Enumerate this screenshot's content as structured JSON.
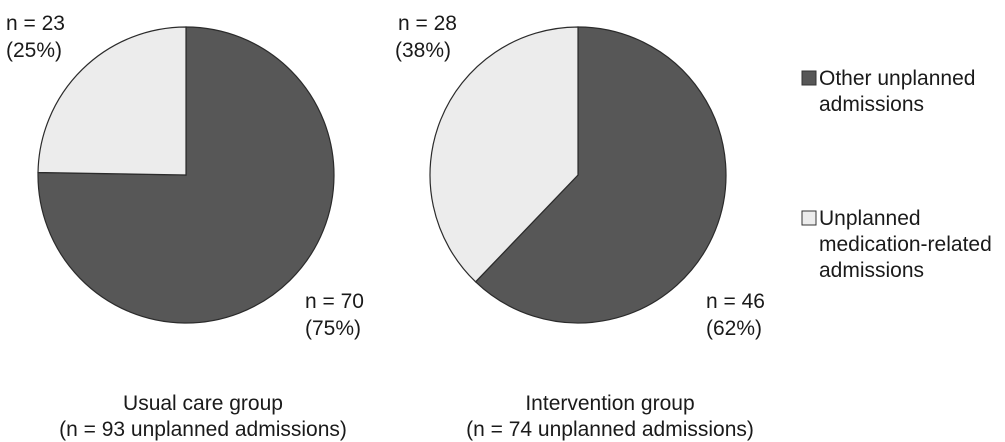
{
  "chart_data": [
    {
      "type": "pie",
      "title": "Usual care group",
      "subtitle": "(n = 93 unplanned admissions)",
      "slices": [
        {
          "name": "Other unplanned admissions",
          "value": 70,
          "count_label": "n = 70",
          "pct_label": "(75%)",
          "color": "#575757"
        },
        {
          "name": "Unplanned medication-related admissions",
          "value": 23,
          "count_label": "n = 23",
          "pct_label": "(25%)",
          "color": "#ececec"
        }
      ]
    },
    {
      "type": "pie",
      "title": "Intervention group",
      "subtitle": "(n = 74 unplanned admissions)",
      "slices": [
        {
          "name": "Other unplanned admissions",
          "value": 46,
          "count_label": "n = 46",
          "pct_label": "(62%)",
          "color": "#575757"
        },
        {
          "name": "Unplanned medication-related admissions",
          "value": 28,
          "count_label": "n = 28",
          "pct_label": "(38%)",
          "color": "#ececec"
        }
      ]
    }
  ],
  "legend": {
    "placement": "right",
    "entries": [
      {
        "lines": [
          "Other unplanned",
          "admissions"
        ],
        "color": "#575757"
      },
      {
        "lines": [
          "Unplanned",
          "medication-related",
          "admissions"
        ],
        "color": "#ececec"
      }
    ]
  }
}
